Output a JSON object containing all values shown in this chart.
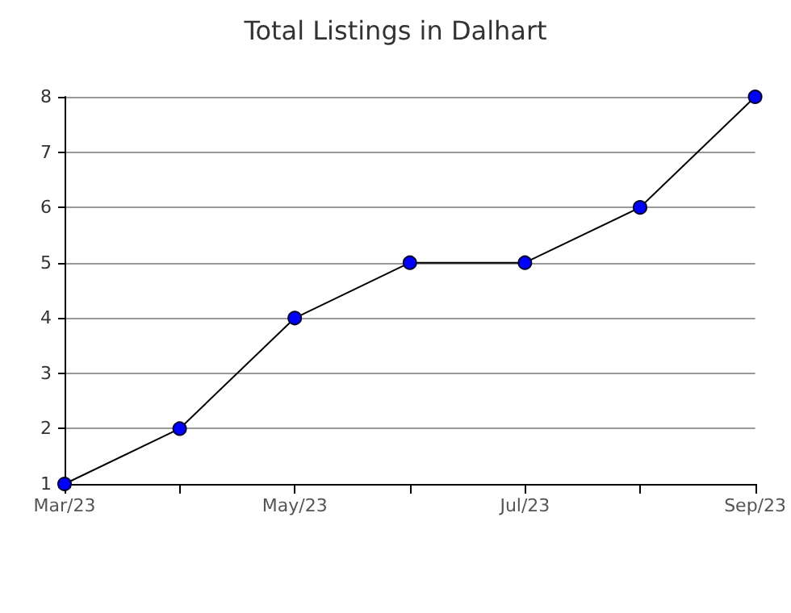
{
  "chart_data": {
    "type": "line",
    "title": "Total Listings in Dalhart",
    "categories": [
      "Mar/23",
      null,
      "May/23",
      null,
      "Jul/23",
      null,
      "Sep/23"
    ],
    "series": [
      {
        "color": "#0000ff",
        "values": [
          1,
          2,
          4,
          5,
          5,
          6,
          8
        ]
      }
    ],
    "ylim": [
      1,
      8
    ],
    "yticks": [
      1,
      2,
      3,
      4,
      5,
      6,
      7,
      8
    ],
    "grid": "y",
    "marker": "circle",
    "line_style": "solid"
  }
}
